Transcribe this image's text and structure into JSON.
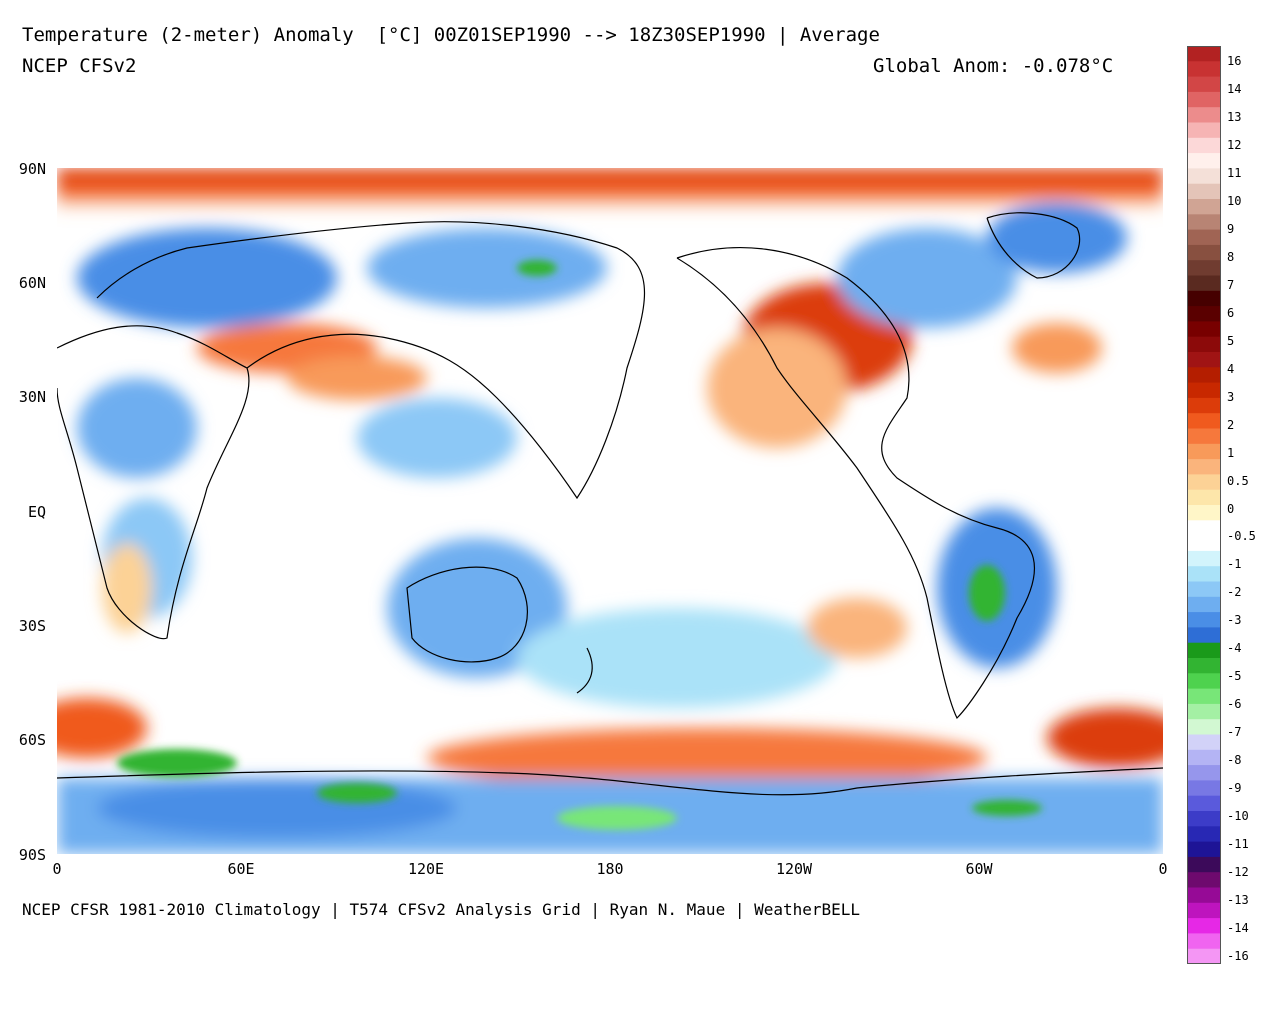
{
  "title": {
    "line1_left": "Temperature (2-meter) Anomaly  [°C] 00Z01SEP1990 --> 18Z30SEP1990 | Average",
    "line2_left": "NCEP CFSv2",
    "line2_right": "Global Anom: -0.078°C"
  },
  "footer": "NCEP CFSR 1981-2010 Climatology | T574 CFSv2 Analysis Grid | Ryan N. Maue | WeatherBELL",
  "axes": {
    "lat_labels": [
      "90N",
      "60N",
      "30N",
      "EQ",
      "30S",
      "60S",
      "90S"
    ],
    "lon_labels": [
      "0",
      "60E",
      "120E",
      "180",
      "120W",
      "60W",
      "0"
    ]
  },
  "colorbar": {
    "labels": [
      "16",
      "14",
      "13",
      "12",
      "11",
      "10",
      "9",
      "8",
      "7",
      "6",
      "5",
      "4",
      "3",
      "2",
      "1",
      "0.5",
      "0",
      "-0.5",
      "-1",
      "-2",
      "-3",
      "-4",
      "-5",
      "-6",
      "-7",
      "-8",
      "-9",
      "-10",
      "-11",
      "-12",
      "-13",
      "-14",
      "-16"
    ],
    "colors": [
      "#b22222",
      "#c83232",
      "#d24646",
      "#e06464",
      "#ec8c8c",
      "#f6b4b4",
      "#fcd8d8",
      "#fff0ec",
      "#f4e0d8",
      "#e4c4b8",
      "#d0a494",
      "#b88474",
      "#a06454",
      "#885040",
      "#703c30",
      "#5a2a20",
      "#460000",
      "#5a0000",
      "#780000",
      "#8c0a0a",
      "#a01414",
      "#b41e00",
      "#c82800",
      "#dc3c0a",
      "#f05a1e",
      "#f6783c",
      "#f89a5a",
      "#fab47c",
      "#fcd296",
      "#fde6aa",
      "#fff6c8",
      "#ffffff",
      "#ffffff",
      "#d2f4fc",
      "#aae2f8",
      "#8cc8f6",
      "#6eaef0",
      "#4a8ee6",
      "#2e6ed6",
      "#1a9a1a",
      "#32b432",
      "#4ed24e",
      "#78e678",
      "#a4f0a4",
      "#d2f8d2",
      "#d2d2f8",
      "#b4b4f4",
      "#9696ec",
      "#7878e4",
      "#5a5adc",
      "#3c3cc8",
      "#2828b4",
      "#1e1496",
      "#3c0a5a",
      "#6e0a6e",
      "#960a96",
      "#be14be",
      "#e628e6",
      "#f064f0",
      "#f496f4"
    ]
  }
}
